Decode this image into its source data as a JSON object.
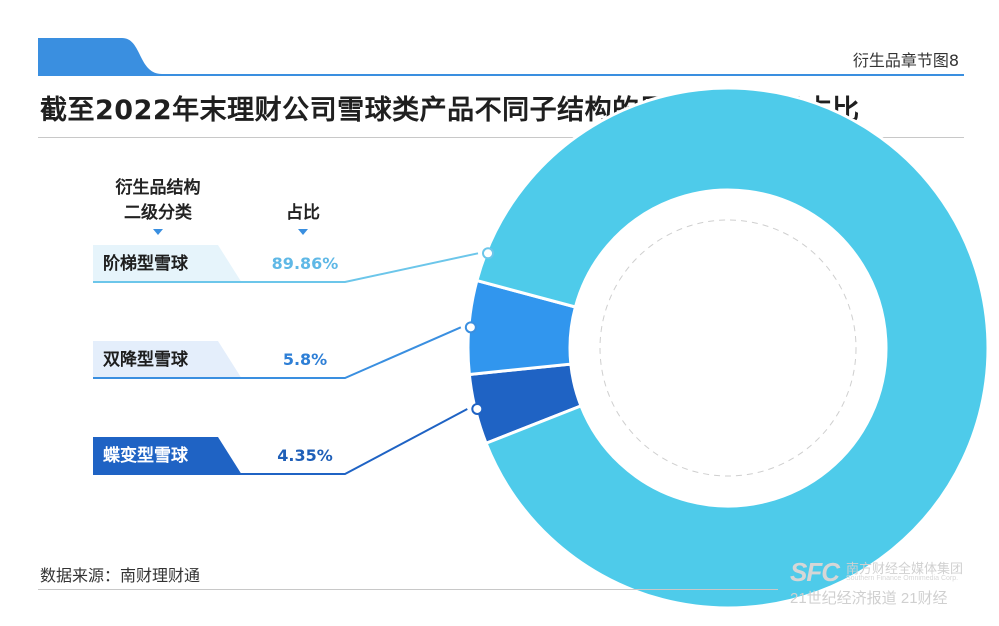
{
  "header": {
    "figure_label": "衍生品章节图8",
    "title": "截至2022年末理财公司雪球类产品不同子结构的累计发行数量占比",
    "accent_color": "#3a8fe0"
  },
  "table_headers": {
    "category_line1": "衍生品结构",
    "category_line2": "二级分类",
    "percent": "占比"
  },
  "chart_data": {
    "type": "pie",
    "variant": "donut",
    "title": "截至2022年末理财公司雪球类产品不同子结构的累计发行数量占比",
    "categories": [
      "阶梯型雪球",
      "双降型雪球",
      "蝶变型雪球"
    ],
    "values": [
      89.86,
      5.8,
      4.35
    ],
    "value_labels": [
      "89.86%",
      "5.8%",
      "4.35%"
    ],
    "colors": [
      "#4ecbea",
      "#3196ee",
      "#1f63c4"
    ]
  },
  "footer": {
    "source": "数据来源：南财理财通"
  },
  "watermark": {
    "logo": "SFC",
    "group": "南方财经全媒体集团",
    "group_en": "Southern Finance Omnimedia Corp.",
    "line2": "21世纪经济报道  21财经"
  }
}
